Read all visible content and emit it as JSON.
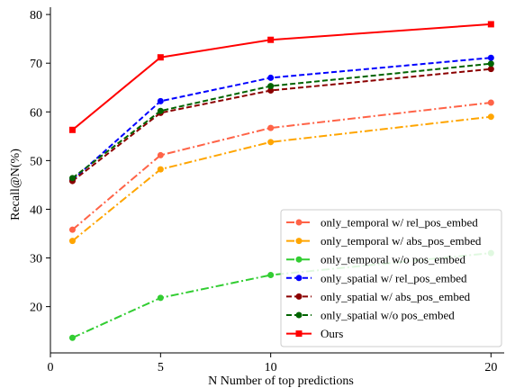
{
  "chart_data": {
    "type": "line",
    "xlabel": "N  Number of top predictions",
    "ylabel": "Recall@N(%)",
    "xlim": [
      0,
      20.6
    ],
    "ylim": [
      10.5,
      81.5
    ],
    "x_ticks": [
      0,
      5,
      10,
      20
    ],
    "y_ticks": [
      20,
      30,
      40,
      50,
      60,
      70,
      80
    ],
    "x": [
      1,
      5,
      10,
      20
    ],
    "legend_position": "lower-right",
    "grid": false,
    "series": [
      {
        "name": "only_temporal w/ rel_pos_embed",
        "values": [
          35.8,
          51.1,
          56.7,
          61.9
        ],
        "color": "#ff6347",
        "dash": "dashdot",
        "marker": "circle"
      },
      {
        "name": "only_temporal w/ abs_pos_embed",
        "values": [
          33.5,
          48.2,
          53.8,
          59.0
        ],
        "color": "#ffa500",
        "dash": "dashdot",
        "marker": "circle"
      },
      {
        "name": "only_temporal w/o pos_embed",
        "values": [
          13.6,
          21.8,
          26.5,
          31.0
        ],
        "color": "#32cd32",
        "dash": "dashdot",
        "marker": "circle"
      },
      {
        "name": "only_spatial w/ rel_pos_embed",
        "values": [
          46.0,
          62.2,
          67.0,
          71.1
        ],
        "color": "#0000ff",
        "dash": "dashed",
        "marker": "circle"
      },
      {
        "name": "only_spatial w/ abs_pos_embed",
        "values": [
          45.8,
          59.8,
          64.4,
          68.8
        ],
        "color": "#8b0000",
        "dash": "dashed",
        "marker": "circle"
      },
      {
        "name": "only_spatial w/o pos_embed",
        "values": [
          46.4,
          60.2,
          65.3,
          69.9
        ],
        "color": "#006400",
        "dash": "dashed",
        "marker": "circle"
      },
      {
        "name": "Ours",
        "values": [
          56.3,
          71.2,
          74.8,
          78.0
        ],
        "color": "#ff0000",
        "dash": "solid",
        "marker": "square"
      }
    ]
  }
}
